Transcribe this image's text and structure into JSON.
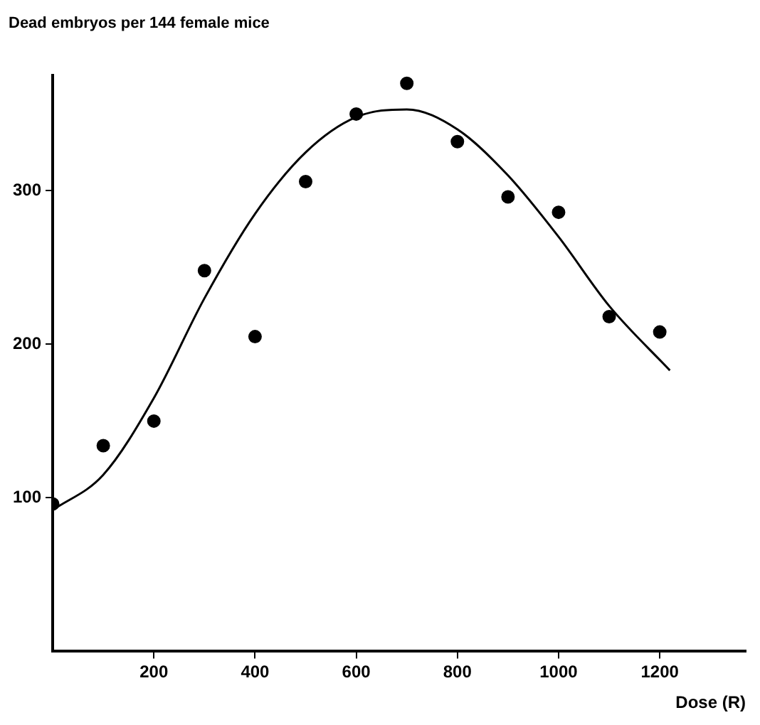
{
  "chart_data": {
    "type": "scatter",
    "xlabel": "Dose (R)",
    "ylabel": "Dead embryos per 144 female mice",
    "xlim": [
      0,
      1370
    ],
    "ylim": [
      0,
      375
    ],
    "xticks": [
      200,
      400,
      600,
      800,
      1000,
      1200
    ],
    "yticks": [
      100,
      200,
      300
    ],
    "grid": false,
    "legend": false,
    "marker": "circle",
    "series": [
      {
        "color": "#000000",
        "x": [
          0,
          100,
          200,
          300,
          400,
          500,
          600,
          700,
          800,
          900,
          1000,
          1100,
          1200
        ],
        "values": [
          96,
          134,
          150,
          248,
          205,
          306,
          350,
          370,
          332,
          296,
          286,
          218,
          208
        ]
      },
      {
        "type": "line",
        "color": "#000000",
        "marker": "none",
        "line_style": "solid",
        "x": [
          0,
          100,
          200,
          300,
          400,
          500,
          600,
          700,
          800,
          900,
          1000,
          1100,
          1220
        ],
        "values": [
          92,
          115,
          165,
          230,
          285,
          325,
          348,
          353,
          340,
          310,
          270,
          225,
          183
        ]
      }
    ]
  }
}
